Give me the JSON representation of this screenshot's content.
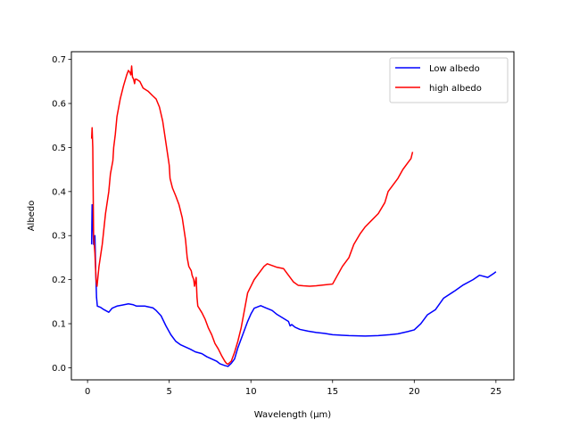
{
  "chart_data": {
    "type": "line",
    "title": "",
    "xlabel": "Wavelength (μm)",
    "ylabel": "Albedo",
    "xlim": [
      -0.99,
      26.1
    ],
    "ylim": [
      -0.0275,
      0.7175
    ],
    "xticks": [
      0,
      5,
      10,
      15,
      20,
      25
    ],
    "yticks": [
      0.0,
      0.1,
      0.2,
      0.3,
      0.4,
      0.5,
      0.6,
      0.7
    ],
    "grid": false,
    "legend_position": "top-right",
    "series": [
      {
        "name": "Low albedo",
        "color": "#0000ff",
        "points": [
          [
            0.25,
            0.28
          ],
          [
            0.28,
            0.37
          ],
          [
            0.32,
            0.34
          ],
          [
            0.37,
            0.28
          ],
          [
            0.45,
            0.3
          ],
          [
            0.5,
            0.22
          ],
          [
            0.55,
            0.16
          ],
          [
            0.6,
            0.14
          ],
          [
            0.8,
            0.137
          ],
          [
            1.0,
            0.132
          ],
          [
            1.3,
            0.126
          ],
          [
            1.5,
            0.135
          ],
          [
            1.8,
            0.14
          ],
          [
            2.1,
            0.142
          ],
          [
            2.5,
            0.145
          ],
          [
            2.8,
            0.143
          ],
          [
            3.0,
            0.14
          ],
          [
            3.5,
            0.14
          ],
          [
            4.0,
            0.136
          ],
          [
            4.2,
            0.13
          ],
          [
            4.5,
            0.118
          ],
          [
            4.8,
            0.095
          ],
          [
            5.1,
            0.075
          ],
          [
            5.4,
            0.06
          ],
          [
            5.7,
            0.052
          ],
          [
            6.0,
            0.047
          ],
          [
            6.3,
            0.042
          ],
          [
            6.6,
            0.036
          ],
          [
            7.0,
            0.032
          ],
          [
            7.3,
            0.025
          ],
          [
            7.6,
            0.02
          ],
          [
            7.9,
            0.015
          ],
          [
            8.1,
            0.009
          ],
          [
            8.4,
            0.005
          ],
          [
            8.6,
            0.003
          ],
          [
            8.8,
            0.01
          ],
          [
            9.0,
            0.02
          ],
          [
            9.2,
            0.045
          ],
          [
            9.5,
            0.075
          ],
          [
            9.8,
            0.105
          ],
          [
            10.0,
            0.122
          ],
          [
            10.2,
            0.135
          ],
          [
            10.6,
            0.141
          ],
          [
            10.9,
            0.136
          ],
          [
            11.3,
            0.13
          ],
          [
            11.6,
            0.121
          ],
          [
            12.0,
            0.112
          ],
          [
            12.3,
            0.105
          ],
          [
            12.4,
            0.095
          ],
          [
            12.5,
            0.098
          ],
          [
            12.7,
            0.092
          ],
          [
            13.0,
            0.087
          ],
          [
            13.5,
            0.083
          ],
          [
            14.0,
            0.08
          ],
          [
            14.5,
            0.078
          ],
          [
            15.0,
            0.075
          ],
          [
            16.0,
            0.073
          ],
          [
            17.0,
            0.072
          ],
          [
            17.8,
            0.073
          ],
          [
            18.5,
            0.075
          ],
          [
            19.0,
            0.077
          ],
          [
            19.6,
            0.082
          ],
          [
            20.0,
            0.086
          ],
          [
            20.4,
            0.1
          ],
          [
            20.8,
            0.12
          ],
          [
            21.3,
            0.132
          ],
          [
            21.8,
            0.158
          ],
          [
            22.5,
            0.175
          ],
          [
            23.0,
            0.188
          ],
          [
            23.6,
            0.2
          ],
          [
            24.0,
            0.21
          ],
          [
            24.5,
            0.205
          ],
          [
            24.9,
            0.215
          ],
          [
            25.0,
            0.218
          ]
        ]
      },
      {
        "name": "high albedo",
        "color": "#ff0000",
        "points": [
          [
            0.25,
            0.52
          ],
          [
            0.28,
            0.545
          ],
          [
            0.32,
            0.5
          ],
          [
            0.37,
            0.3
          ],
          [
            0.45,
            0.26
          ],
          [
            0.52,
            0.2
          ],
          [
            0.58,
            0.185
          ],
          [
            0.7,
            0.23
          ],
          [
            0.9,
            0.28
          ],
          [
            1.1,
            0.35
          ],
          [
            1.3,
            0.4
          ],
          [
            1.4,
            0.44
          ],
          [
            1.55,
            0.47
          ],
          [
            1.6,
            0.5
          ],
          [
            1.7,
            0.53
          ],
          [
            1.8,
            0.57
          ],
          [
            2.0,
            0.61
          ],
          [
            2.2,
            0.64
          ],
          [
            2.4,
            0.665
          ],
          [
            2.5,
            0.675
          ],
          [
            2.6,
            0.67
          ],
          [
            2.65,
            0.665
          ],
          [
            2.7,
            0.685
          ],
          [
            2.75,
            0.66
          ],
          [
            2.82,
            0.655
          ],
          [
            2.88,
            0.645
          ],
          [
            2.92,
            0.655
          ],
          [
            3.0,
            0.655
          ],
          [
            3.2,
            0.65
          ],
          [
            3.4,
            0.635
          ],
          [
            3.7,
            0.628
          ],
          [
            4.0,
            0.617
          ],
          [
            4.2,
            0.61
          ],
          [
            4.4,
            0.592
          ],
          [
            4.6,
            0.56
          ],
          [
            4.8,
            0.51
          ],
          [
            5.0,
            0.46
          ],
          [
            5.05,
            0.43
          ],
          [
            5.2,
            0.408
          ],
          [
            5.4,
            0.39
          ],
          [
            5.6,
            0.37
          ],
          [
            5.8,
            0.34
          ],
          [
            6.0,
            0.29
          ],
          [
            6.1,
            0.25
          ],
          [
            6.2,
            0.23
          ],
          [
            6.35,
            0.22
          ],
          [
            6.4,
            0.21
          ],
          [
            6.5,
            0.2
          ],
          [
            6.55,
            0.185
          ],
          [
            6.65,
            0.205
          ],
          [
            6.7,
            0.16
          ],
          [
            6.75,
            0.14
          ],
          [
            7.0,
            0.125
          ],
          [
            7.2,
            0.11
          ],
          [
            7.4,
            0.09
          ],
          [
            7.6,
            0.075
          ],
          [
            7.8,
            0.055
          ],
          [
            8.0,
            0.043
          ],
          [
            8.2,
            0.028
          ],
          [
            8.4,
            0.015
          ],
          [
            8.5,
            0.01
          ],
          [
            8.6,
            0.008
          ],
          [
            8.8,
            0.015
          ],
          [
            9.0,
            0.035
          ],
          [
            9.2,
            0.06
          ],
          [
            9.4,
            0.09
          ],
          [
            9.6,
            0.13
          ],
          [
            9.8,
            0.17
          ],
          [
            10.0,
            0.185
          ],
          [
            10.2,
            0.2
          ],
          [
            10.5,
            0.215
          ],
          [
            10.8,
            0.23
          ],
          [
            11.0,
            0.236
          ],
          [
            11.3,
            0.232
          ],
          [
            11.6,
            0.228
          ],
          [
            12.0,
            0.225
          ],
          [
            12.3,
            0.21
          ],
          [
            12.6,
            0.195
          ],
          [
            12.9,
            0.187
          ],
          [
            13.2,
            0.186
          ],
          [
            13.6,
            0.185
          ],
          [
            14.0,
            0.186
          ],
          [
            14.5,
            0.188
          ],
          [
            15.0,
            0.19
          ],
          [
            15.3,
            0.21
          ],
          [
            15.6,
            0.23
          ],
          [
            16.0,
            0.25
          ],
          [
            16.3,
            0.28
          ],
          [
            16.7,
            0.305
          ],
          [
            17.0,
            0.32
          ],
          [
            17.4,
            0.335
          ],
          [
            17.8,
            0.35
          ],
          [
            18.2,
            0.375
          ],
          [
            18.4,
            0.4
          ],
          [
            18.7,
            0.415
          ],
          [
            19.0,
            0.43
          ],
          [
            19.3,
            0.45
          ],
          [
            19.6,
            0.465
          ],
          [
            19.8,
            0.475
          ],
          [
            19.9,
            0.49
          ]
        ]
      }
    ]
  }
}
